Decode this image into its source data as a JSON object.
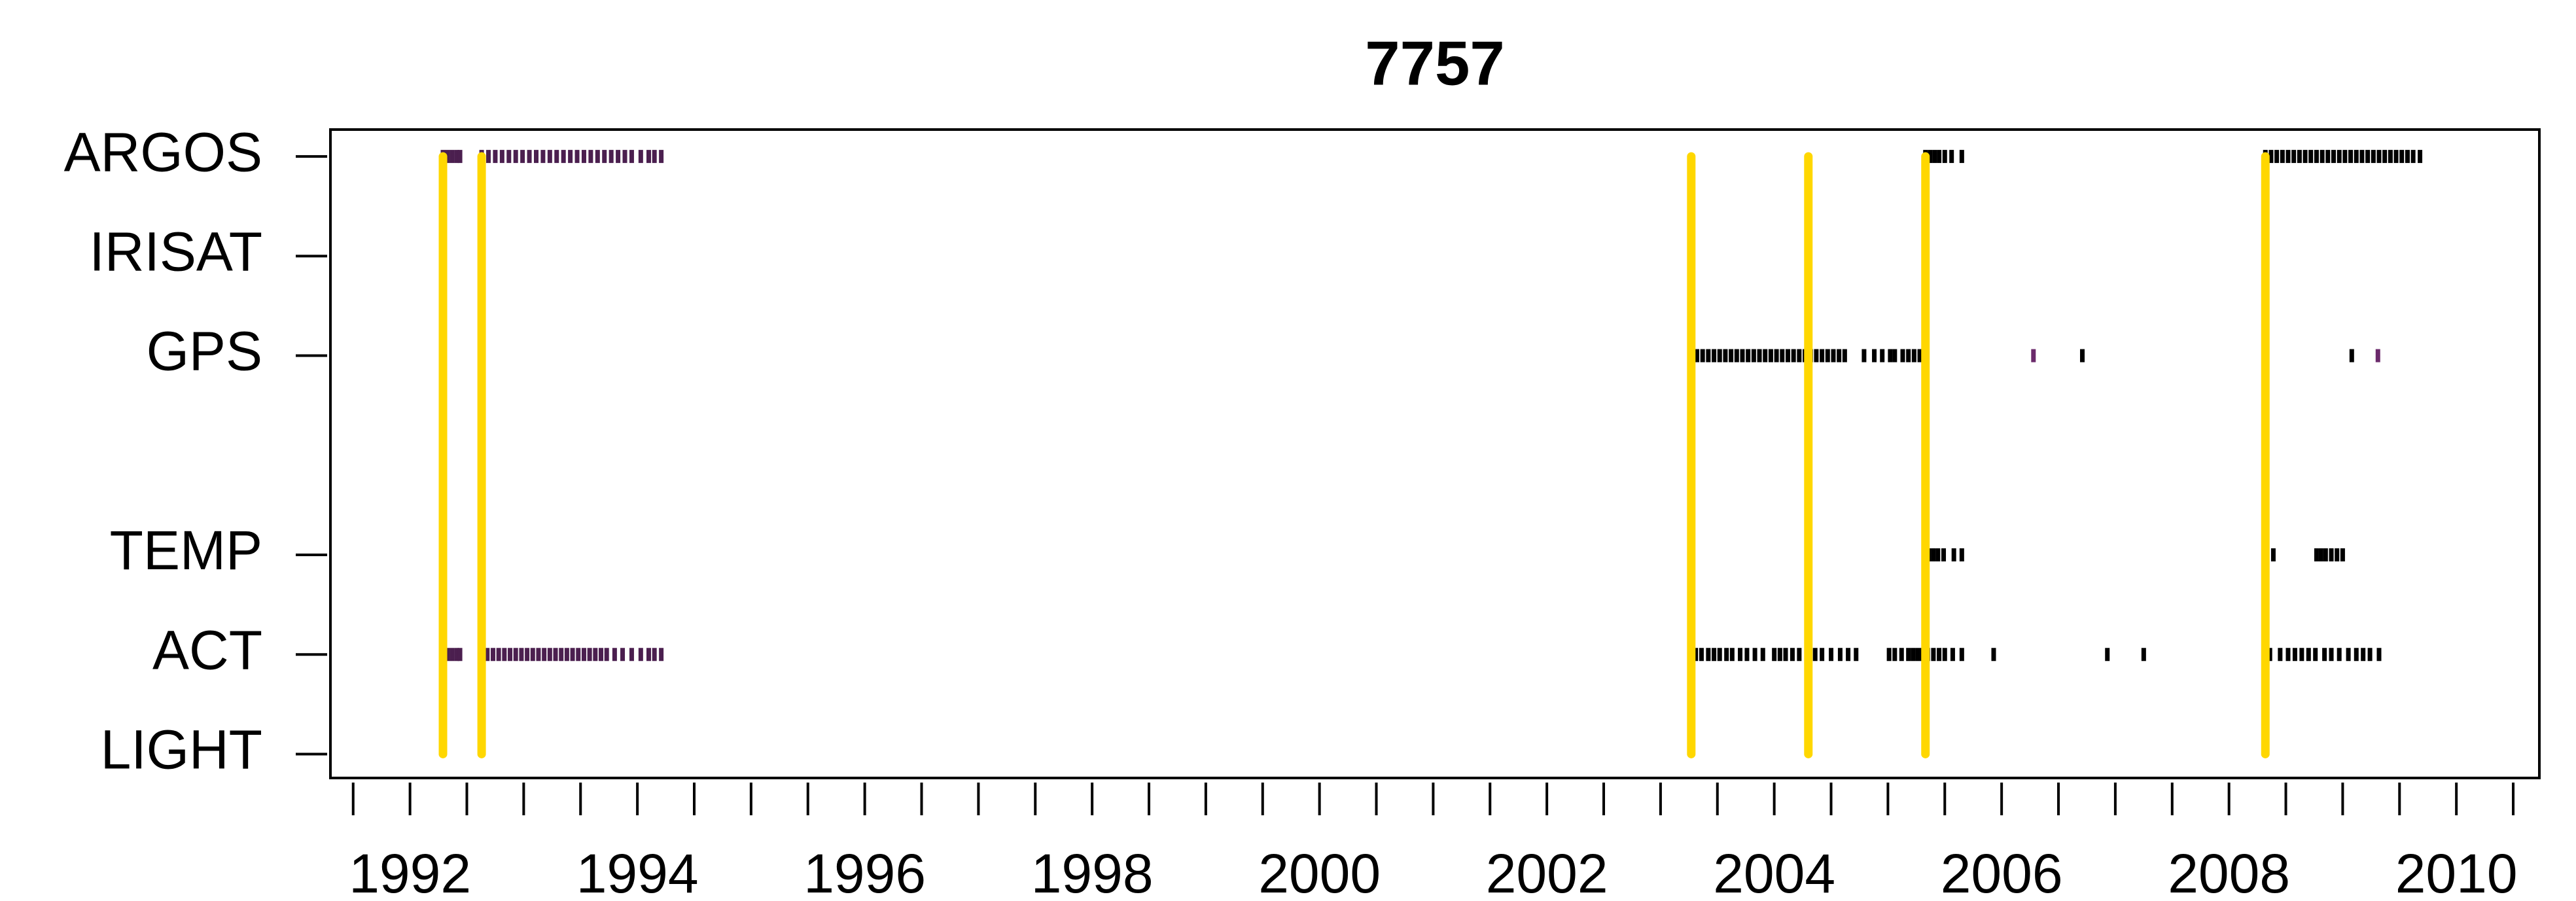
{
  "chart_data": {
    "type": "timeline",
    "title": "7757",
    "xlim": [
      1991.3,
      2010.73
    ],
    "ylim": [
      0.76,
      7.27
    ],
    "xticks": [
      1992,
      1994,
      1996,
      1998,
      2000,
      2002,
      2004,
      2006,
      2008,
      2010
    ],
    "xminor_ticks": [
      1991.5,
      1992.5,
      1993,
      1993.5,
      1994.5,
      1995,
      1995.5,
      1996.5,
      1997,
      1997.5,
      1998.5,
      1999,
      1999.5,
      2000.5,
      2001,
      2001.5,
      2002.5,
      2003,
      2003.5,
      2004.5,
      2005,
      2005.5,
      2006.5,
      2007,
      2007.5,
      2008.5,
      2009,
      2009.5,
      2010.5
    ],
    "yticks": [
      {
        "value": 1,
        "label": "LIGHT"
      },
      {
        "value": 2,
        "label": "ACT"
      },
      {
        "value": 3,
        "label": "TEMP"
      },
      {
        "value": 5,
        "label": "GPS"
      },
      {
        "value": 6,
        "label": "IRISAT"
      },
      {
        "value": 7,
        "label": "ARGOS"
      }
    ],
    "events": {
      "color": "#ffd700",
      "x": [
        1992.29,
        1992.63,
        2003.27,
        2004.3,
        2005.33,
        2008.32
      ]
    },
    "tracks": [
      {
        "y": 7,
        "color": "#4b1f4f",
        "x": [
          1992.29,
          1992.33,
          1992.37,
          1992.41,
          1992.44,
          1992.63,
          1992.69,
          1992.75,
          1992.81,
          1992.87,
          1992.93,
          1992.99,
          1993.05,
          1993.11,
          1993.17,
          1993.23,
          1993.29,
          1993.35,
          1993.41,
          1993.47,
          1993.53,
          1993.59,
          1993.65,
          1993.71,
          1993.77,
          1993.83,
          1993.89,
          1993.95,
          1994.03,
          1994.1,
          1994.15,
          1994.21
        ]
      },
      {
        "y": 7,
        "color": "#000000",
        "x": [
          2005.33,
          2005.37,
          2005.41,
          2005.45,
          2005.5,
          2005.56,
          2005.65,
          2008.32,
          2008.37,
          2008.42,
          2008.47,
          2008.52,
          2008.57,
          2008.62,
          2008.67,
          2008.72,
          2008.77,
          2008.82,
          2008.87,
          2008.92,
          2008.97,
          2009.02,
          2009.07,
          2009.12,
          2009.17,
          2009.22,
          2009.27,
          2009.32,
          2009.37,
          2009.42,
          2009.47,
          2009.52,
          2009.57,
          2009.62,
          2009.68
        ]
      },
      {
        "y": 5,
        "color": "#000000",
        "x": [
          2003.27,
          2003.32,
          2003.37,
          2003.42,
          2003.47,
          2003.52,
          2003.57,
          2003.62,
          2003.67,
          2003.72,
          2003.77,
          2003.82,
          2003.87,
          2003.92,
          2003.97,
          2004.02,
          2004.07,
          2004.12,
          2004.17,
          2004.22,
          2004.27,
          2004.32,
          2004.37,
          2004.42,
          2004.47,
          2004.52,
          2004.57,
          2004.62,
          2004.79,
          2004.88,
          2004.95,
          2005.02,
          2005.06,
          2005.13,
          2005.18,
          2005.23,
          2005.28,
          2005.33,
          2006.71,
          2009.08
        ]
      },
      {
        "y": 5,
        "color": "#6b2a6b",
        "x": [
          2006.28,
          2009.31
        ]
      },
      {
        "y": 3,
        "color": "#000000",
        "x": [
          2005.33,
          2005.36,
          2005.4,
          2005.44,
          2005.49,
          2005.58,
          2005.65,
          2008.39,
          2008.77,
          2008.81,
          2008.85,
          2008.9,
          2008.95,
          2009.0
        ]
      },
      {
        "y": 2,
        "color": "#4b1f4f",
        "x": [
          1992.29,
          1992.33,
          1992.37,
          1992.41,
          1992.44,
          1992.63,
          1992.68,
          1992.73,
          1992.78,
          1992.83,
          1992.88,
          1992.93,
          1992.98,
          1993.03,
          1993.08,
          1993.13,
          1993.18,
          1993.23,
          1993.28,
          1993.33,
          1993.38,
          1993.43,
          1993.48,
          1993.53,
          1993.58,
          1993.63,
          1993.68,
          1993.73,
          1993.8,
          1993.87,
          1993.95,
          1994.03,
          1994.1,
          1994.15,
          1994.21
        ]
      },
      {
        "y": 2,
        "color": "#000000",
        "x": [
          2003.27,
          2003.31,
          2003.36,
          2003.42,
          2003.47,
          2003.52,
          2003.58,
          2003.63,
          2003.7,
          2003.76,
          2003.83,
          2003.9,
          2004.0,
          2004.05,
          2004.1,
          2004.16,
          2004.22,
          2004.3,
          2004.36,
          2004.42,
          2004.5,
          2004.58,
          2004.65,
          2004.72,
          2005.01,
          2005.06,
          2005.12,
          2005.18,
          2005.22,
          2005.26,
          2005.3,
          2005.35,
          2005.4,
          2005.45,
          2005.5,
          2005.57,
          2005.65,
          2005.93,
          2006.93,
          2007.25,
          2008.32,
          2008.36,
          2008.45,
          2008.52,
          2008.58,
          2008.64,
          2008.7,
          2008.76,
          2008.84,
          2008.9,
          2008.97,
          2009.05,
          2009.12,
          2009.18,
          2009.24,
          2009.32
        ]
      }
    ]
  }
}
